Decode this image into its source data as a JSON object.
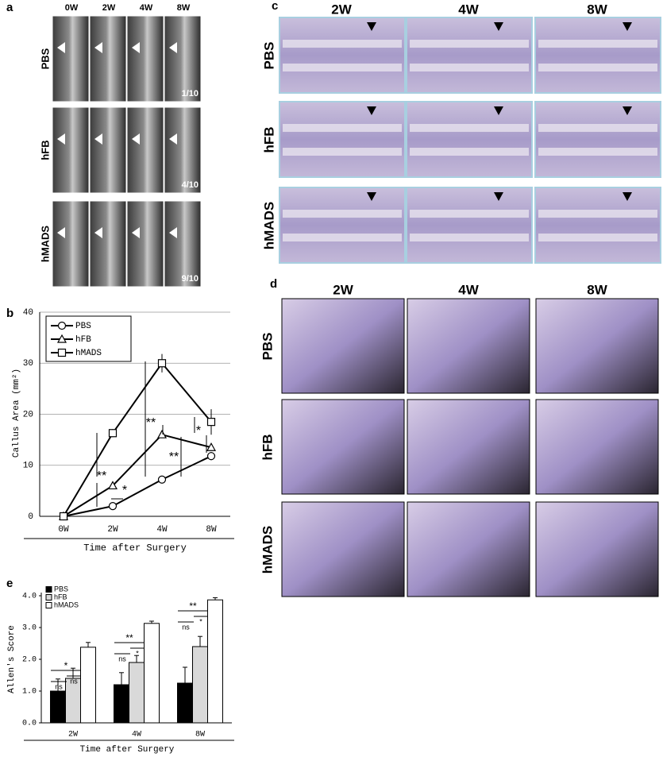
{
  "panels": {
    "a": {
      "letter": "a",
      "columns": [
        "0W",
        "2W",
        "4W",
        "8W"
      ],
      "rows": [
        "PBS",
        "hFB",
        "hMADS"
      ],
      "ratios": [
        "1/10",
        "4/10",
        "9/10"
      ]
    },
    "b": {
      "letter": "b"
    },
    "c": {
      "letter": "c",
      "columns": [
        "2W",
        "4W",
        "8W"
      ],
      "rows": [
        "PBS",
        "hFB",
        "hMADS"
      ]
    },
    "d": {
      "letter": "d",
      "columns": [
        "2W",
        "4W",
        "8W"
      ],
      "rows": [
        "PBS",
        "hFB",
        "hMADS"
      ]
    },
    "e": {
      "letter": "e"
    }
  },
  "chart_data": [
    {
      "type": "line",
      "y_label": "Callus Area (mm²)",
      "x_label": "Time after Surgery",
      "categories": [
        "0W",
        "2W",
        "4W",
        "8W"
      ],
      "series": [
        {
          "name": "PBS",
          "marker": "circle",
          "color": "#000000",
          "values": [
            0,
            2,
            7.2,
            11.8
          ],
          "errors": [
            0,
            0.3,
            0.4,
            0.8
          ]
        },
        {
          "name": "hFB",
          "marker": "triangle",
          "color": "#000000",
          "values": [
            0,
            6,
            16,
            13.5
          ],
          "errors": [
            0,
            0.4,
            0.6,
            0.5
          ]
        },
        {
          "name": "hMADS",
          "marker": "square",
          "color": "#000000",
          "values": [
            0,
            16.3,
            30,
            18.5
          ],
          "errors": [
            0,
            0.8,
            1.8,
            2.5
          ]
        }
      ],
      "ylim": [
        0,
        40
      ],
      "yticks": [
        0,
        10,
        20,
        30,
        40
      ],
      "grid": true,
      "annotations": [
        "**",
        "*",
        "**",
        "**",
        "*"
      ]
    },
    {
      "type": "bar",
      "y_label": "Allen's Score",
      "x_label": "Time after Surgery",
      "categories": [
        "2W",
        "4W",
        "8W"
      ],
      "series": [
        {
          "name": "PBS",
          "color": "#000000",
          "values": [
            1.0,
            1.2,
            1.25
          ],
          "errors": [
            0.38,
            0.38,
            0.5
          ]
        },
        {
          "name": "hFB",
          "color": "#d9d9d9",
          "values": [
            1.4,
            1.9,
            2.4
          ],
          "errors": [
            0.32,
            0.22,
            0.32
          ]
        },
        {
          "name": "hMADS",
          "color": "#ffffff",
          "values": [
            2.38,
            3.13,
            3.87
          ],
          "errors": [
            0.15,
            0.07,
            0.07
          ]
        }
      ],
      "ylim": [
        0,
        4
      ],
      "yticks": [
        {
          "value": 0,
          "label": "0.0"
        },
        {
          "value": 1,
          "label": "1.0"
        },
        {
          "value": 2,
          "label": "2.0"
        },
        {
          "value": 3,
          "label": "3.0"
        },
        {
          "value": 4,
          "label": "4.0"
        }
      ],
      "annotations": [
        "ns",
        "ns",
        "*",
        "ns",
        "*",
        "**",
        "ns",
        "*",
        "**"
      ]
    }
  ]
}
